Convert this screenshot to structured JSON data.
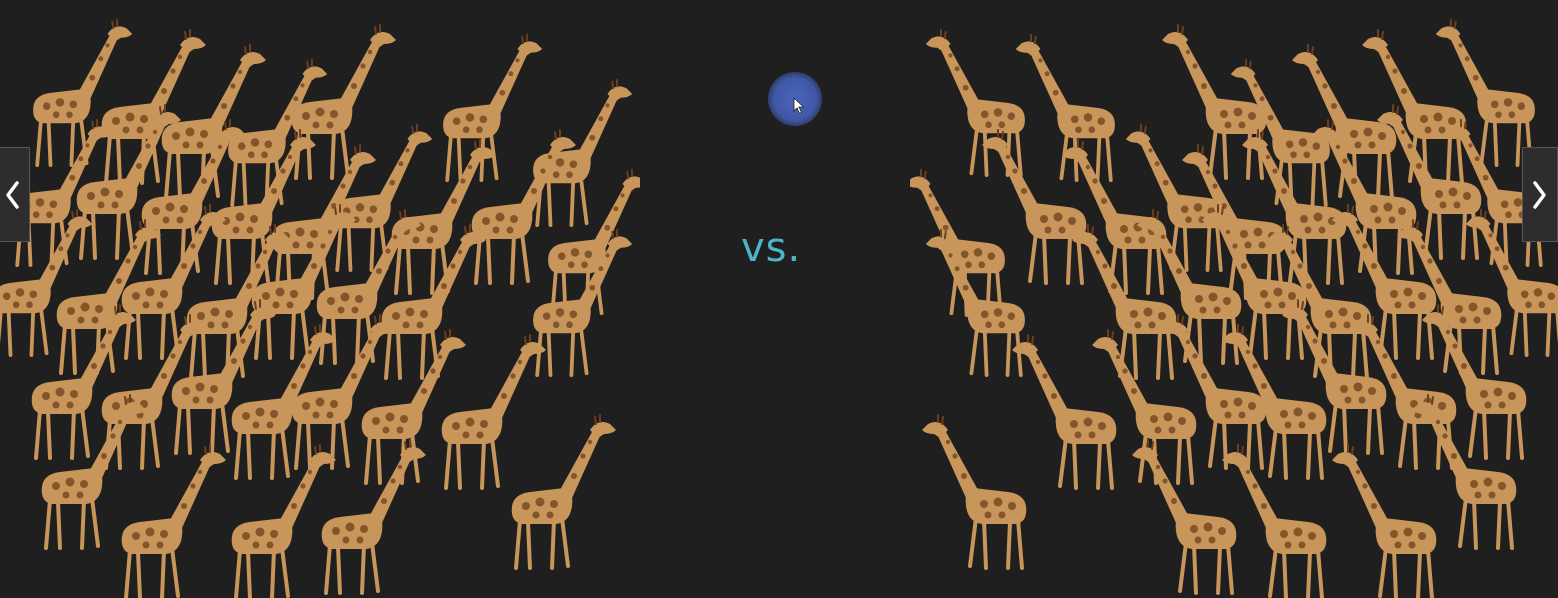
{
  "comparison": {
    "separator_text": "vs.",
    "separator_color": "#4fb4c8"
  },
  "left_group": {
    "subject": "giraffe-herd-large"
  },
  "right_group": {
    "subject": "giraffe-herd-large-mirrored"
  },
  "navigation": {
    "prev_icon": "chevron-left-icon",
    "next_icon": "chevron-right-icon"
  },
  "colors": {
    "background": "#1f1f1f",
    "giraffe_body": "#c8955a",
    "giraffe_spots": "#6e3f1c",
    "cursor_highlight": "#4a64b8"
  }
}
